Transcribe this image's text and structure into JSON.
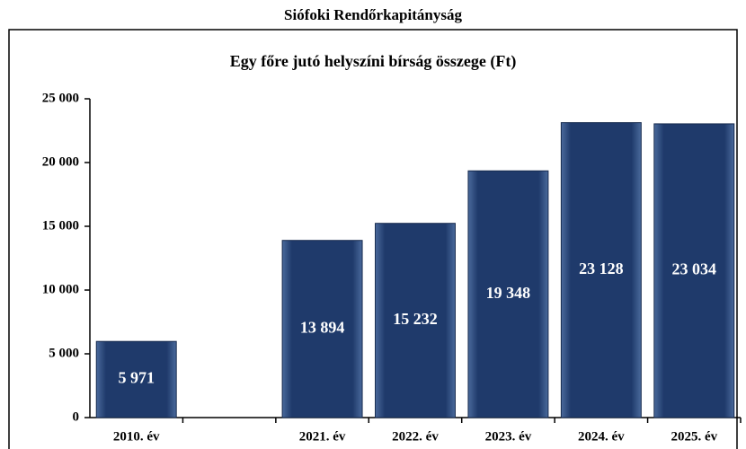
{
  "chart_data": {
    "type": "bar",
    "header": "Siófoki Rendőrkapitányság",
    "title": "Egy főre jutó helyszíni bírság összege (Ft)",
    "categories": [
      "2010. év",
      null,
      "2021. év",
      "2022. év",
      "2023. év",
      "2024. év",
      "2025. év"
    ],
    "values": [
      5971,
      null,
      13894,
      15232,
      19348,
      23128,
      23034
    ],
    "value_labels": [
      "5 971",
      null,
      "13 894",
      "15 232",
      "19 348",
      "23 128",
      "23 034"
    ],
    "color": "#1f3a6b",
    "ylim": [
      0,
      25000
    ],
    "yticks": [
      0,
      {
        "value": 5000,
        "label": "5 000"
      },
      {
        "value": 10000,
        "label": "10 000"
      },
      {
        "value": 15000,
        "label": "15 000"
      },
      {
        "value": 20000,
        "label": "20 000"
      },
      {
        "value": 25000,
        "label": "25 000"
      }
    ],
    "grid": false
  }
}
